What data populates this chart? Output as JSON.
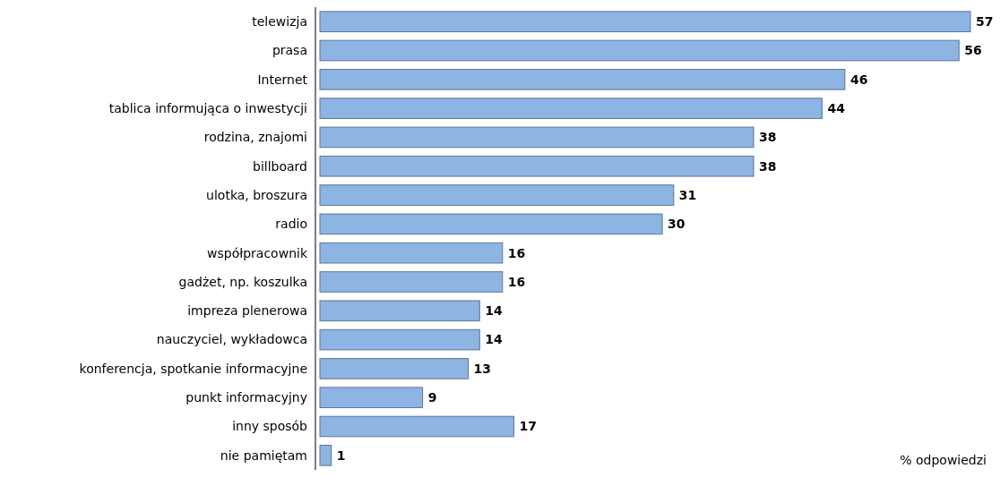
{
  "chart_data": {
    "type": "bar",
    "orientation": "horizontal",
    "data_labels": true,
    "categories": [
      "telewizja",
      "prasa",
      "Internet",
      "tablica informująca o inwestycji",
      "rodzina, znajomi",
      "billboard",
      "ulotka, broszura",
      "radio",
      "współpracownik",
      "gadżet, np. koszulka",
      "impreza plenerowa",
      "nauczyciel, wykładowca",
      "konferencja, spotkanie informacyjne",
      "punkt informacyjny",
      "inny sposób",
      "nie pamiętam"
    ],
    "values": [
      57,
      56,
      46,
      44,
      38,
      38,
      31,
      30,
      16,
      16,
      14,
      14,
      13,
      9,
      17,
      1
    ],
    "color": "#8db4e2",
    "annotations": [
      "% odpowiedzi"
    ]
  }
}
